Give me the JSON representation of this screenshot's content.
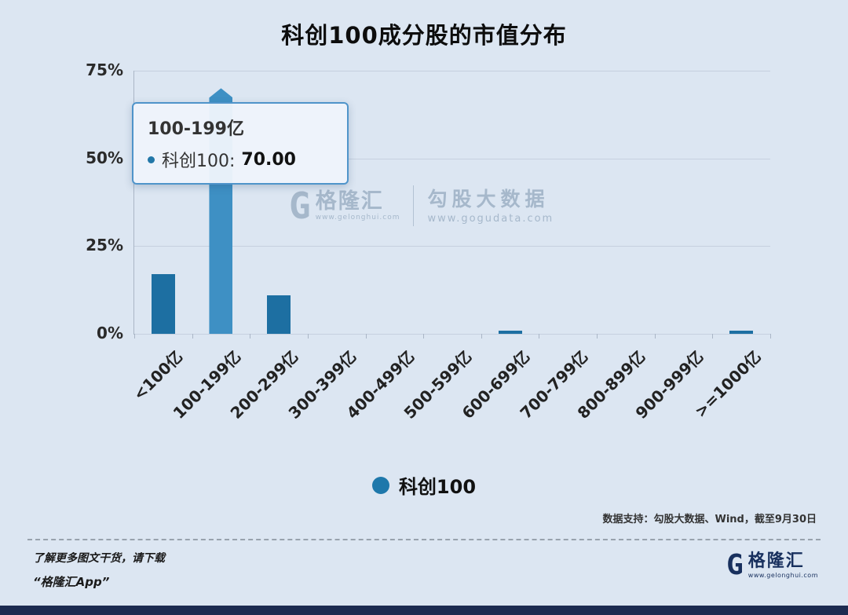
{
  "title": "科创100成分股的市值分布",
  "chart_data": {
    "type": "bar",
    "categories": [
      "<100亿",
      "100-199亿",
      "200-299亿",
      "300-399亿",
      "400-499亿",
      "500-599亿",
      "600-699亿",
      "700-799亿",
      "800-899亿",
      "900-999亿",
      ">=1000亿"
    ],
    "series": [
      {
        "name": "科创100",
        "values": [
          17,
          70,
          11,
          0,
          0,
          0,
          1,
          0,
          0,
          0,
          1
        ]
      }
    ],
    "title": "科创100成分股的市值分布",
    "xlabel": "",
    "ylabel": "",
    "ylim": [
      0,
      75
    ],
    "yticks": [
      "0%",
      "25%",
      "50%",
      "75%"
    ],
    "grid": true,
    "legend_position": "bottom",
    "highlight_index": 1,
    "bar_color": "#1d6fa2",
    "highlight_color": "#3e90c4"
  },
  "tooltip": {
    "category": "100-199亿",
    "series_label": "科创100:",
    "value": "70.00"
  },
  "legend": {
    "label": "科创100"
  },
  "watermark": {
    "logo_letter": "G",
    "brand": "格隆汇",
    "brand_url": "www.gelonghui.com",
    "product": "勾股大数据",
    "product_url": "www.gogudata.com"
  },
  "source_note": "数据支持：勾股大数据、Wind，截至9月30日",
  "footer": {
    "line1": "了解更多图文干货，请下载",
    "line2": "“格隆汇App”",
    "logo_letter": "G",
    "brand": "格隆汇",
    "brand_url": "www.gelonghui.com"
  },
  "colors": {
    "background": "#dce6f2",
    "bar": "#1d6fa2",
    "bar_highlight": "#3e90c4",
    "legend_dot": "#1e78ab",
    "tooltip_border": "#4f94ca",
    "bottom_bar": "#1c2b50"
  }
}
